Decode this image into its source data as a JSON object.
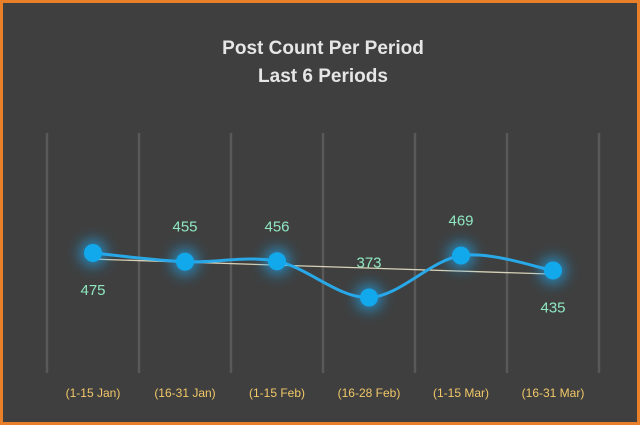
{
  "colors": {
    "background": "#3F3F3F",
    "border": "#E8802A",
    "title": "#E6E6E6",
    "series_line": "#29A8E8",
    "marker": "#12A9EC",
    "marker_glow": "#1AA7F0",
    "trend_line": "#D8D2B8",
    "data_label": "#8FE8C0",
    "tick_label": "#F2C868",
    "gridline": "#595959"
  },
  "chart_data": {
    "type": "line",
    "title": "Post Count Per Period",
    "subtitle": "Last 6 Periods",
    "categories": [
      "(1-15 Jan)",
      "(16-31 Jan)",
      "(1-15 Feb)",
      "(16-28 Feb)",
      "(1-15 Mar)",
      "(16-31 Mar)"
    ],
    "series": [
      {
        "values": [
          475,
          455,
          456,
          373,
          469,
          435
        ]
      }
    ],
    "trendline": "linear",
    "smooth": true,
    "xlabel": "",
    "ylabel": "",
    "ylim": [
      200,
      750
    ],
    "grid": "vertical",
    "legend": "none"
  }
}
